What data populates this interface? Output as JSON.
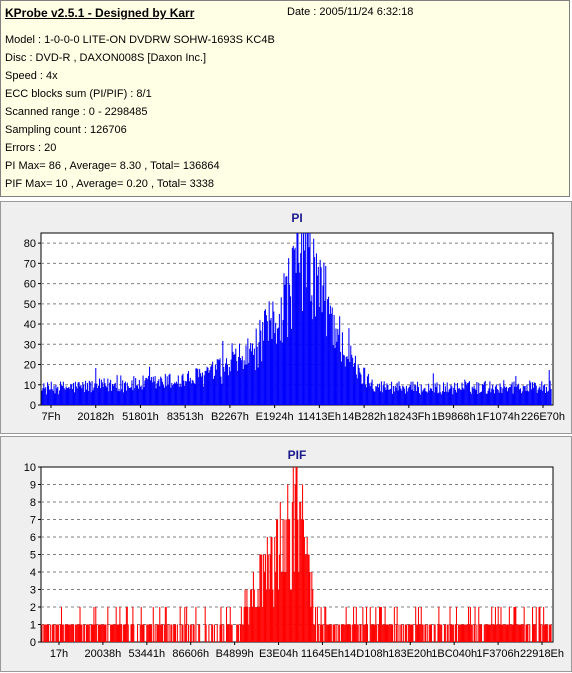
{
  "header": {
    "title": "KProbe v2.5.1 - Designed by Karr",
    "date": "Date : 2005/11/24 6:32:18",
    "lines": [
      "Model : 1-0-0-0 LITE-ON DVDRW SOHW-1693S KC4B",
      "Disc : DVD-R , DAXON008S [Daxon Inc.]",
      "Speed : 4x",
      "ECC blocks sum (PI/PIF) : 8/1",
      "Scanned range : 0 - 2298485",
      "Sampling count : 126706",
      "Errors : 20",
      "PI Max= 86 , Average= 8.30 , Total= 136864",
      "PIF Max= 10 , Average= 0.20 , Total= 3338"
    ]
  },
  "chart_data": [
    {
      "type": "bar",
      "title": "PI",
      "color": "#0000ff",
      "ylim": [
        0,
        85
      ],
      "yticks": [
        0,
        10,
        20,
        30,
        40,
        50,
        60,
        70,
        80
      ],
      "xtick_labels": [
        "7Fh",
        "20182h",
        "51801h",
        "83513h",
        "B2267h",
        "E1924h",
        "11413Eh",
        "14B282h",
        "18243Fh",
        "1B9868h",
        "1F1074h",
        "226E70h"
      ],
      "grid": true,
      "profile": [
        [
          0,
          9
        ],
        [
          40,
          10
        ],
        [
          80,
          11
        ],
        [
          120,
          12
        ],
        [
          160,
          14
        ],
        [
          200,
          20
        ],
        [
          230,
          30
        ],
        [
          250,
          45
        ],
        [
          265,
          60
        ],
        [
          275,
          75
        ],
        [
          283,
          86
        ],
        [
          292,
          72
        ],
        [
          305,
          58
        ],
        [
          320,
          38
        ],
        [
          340,
          18
        ],
        [
          365,
          10
        ],
        [
          420,
          9
        ],
        [
          500,
          10
        ],
        [
          550,
          10
        ]
      ]
    },
    {
      "type": "bar",
      "title": "PIF",
      "color": "#ff0000",
      "ylim": [
        0,
        10
      ],
      "yticks": [
        0,
        1,
        2,
        3,
        4,
        5,
        6,
        7,
        8,
        9,
        10
      ],
      "xtick_labels": [
        "17h",
        "20038h",
        "53441h",
        "86606h",
        "B4899h",
        "E3E04h",
        "11645Eh",
        "14D108h",
        "183E20h",
        "1BC040h",
        "1F3706h",
        "22918Eh"
      ],
      "grid": true,
      "profile": [
        [
          0,
          1
        ],
        [
          150,
          1
        ],
        [
          200,
          2
        ],
        [
          230,
          4
        ],
        [
          250,
          6
        ],
        [
          265,
          8
        ],
        [
          275,
          10
        ],
        [
          285,
          8
        ],
        [
          295,
          1
        ],
        [
          420,
          1
        ],
        [
          550,
          1
        ]
      ]
    }
  ]
}
